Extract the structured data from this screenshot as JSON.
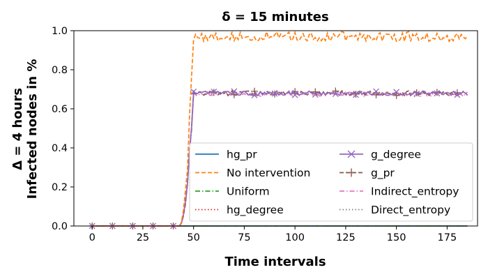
{
  "chart_data": {
    "type": "line",
    "title": "δ = 15 minutes",
    "xlabel": "Time intervals",
    "ylabel": [
      "Δ = 4 hours",
      "Infected nodes in %"
    ],
    "xlim": [
      -9,
      190
    ],
    "ylim": [
      0,
      1.0
    ],
    "xticks": [
      0,
      25,
      50,
      75,
      100,
      125,
      150,
      175
    ],
    "yticks": [
      0.0,
      0.2,
      0.4,
      0.6,
      0.8,
      1.0
    ],
    "grid": false,
    "legend_position": "lower-right",
    "legend_columns": 2,
    "onset": {
      "start": 43,
      "rise_end": 50
    },
    "series": [
      {
        "name": "hg_pr",
        "color": "#1f77b4",
        "style": "solid",
        "marker": "none",
        "plateau": 0.0
      },
      {
        "name": "No intervention",
        "color": "#ff7f0e",
        "style": "dashed",
        "marker": "none",
        "plateau": 0.97
      },
      {
        "name": "Uniform",
        "color": "#2ca02c",
        "style": "dashdot",
        "marker": "none",
        "plateau": 0.0
      },
      {
        "name": "hg_degree",
        "color": "#d62728",
        "style": "dotted",
        "marker": "none",
        "plateau": 0.0
      },
      {
        "name": "g_degree",
        "color": "#9467bd",
        "style": "solid",
        "marker": "x",
        "plateau": 0.68
      },
      {
        "name": "g_pr",
        "color": "#8c564b",
        "style": "dashed",
        "marker": "+",
        "plateau": 0.68
      },
      {
        "name": "Indirect_entropy",
        "color": "#e377c2",
        "style": "dashdot",
        "marker": "none",
        "plateau": 0.675
      },
      {
        "name": "Direct_entropy",
        "color": "#7f7f7f",
        "style": "dotted",
        "marker": "none",
        "plateau": 0.0
      }
    ]
  }
}
